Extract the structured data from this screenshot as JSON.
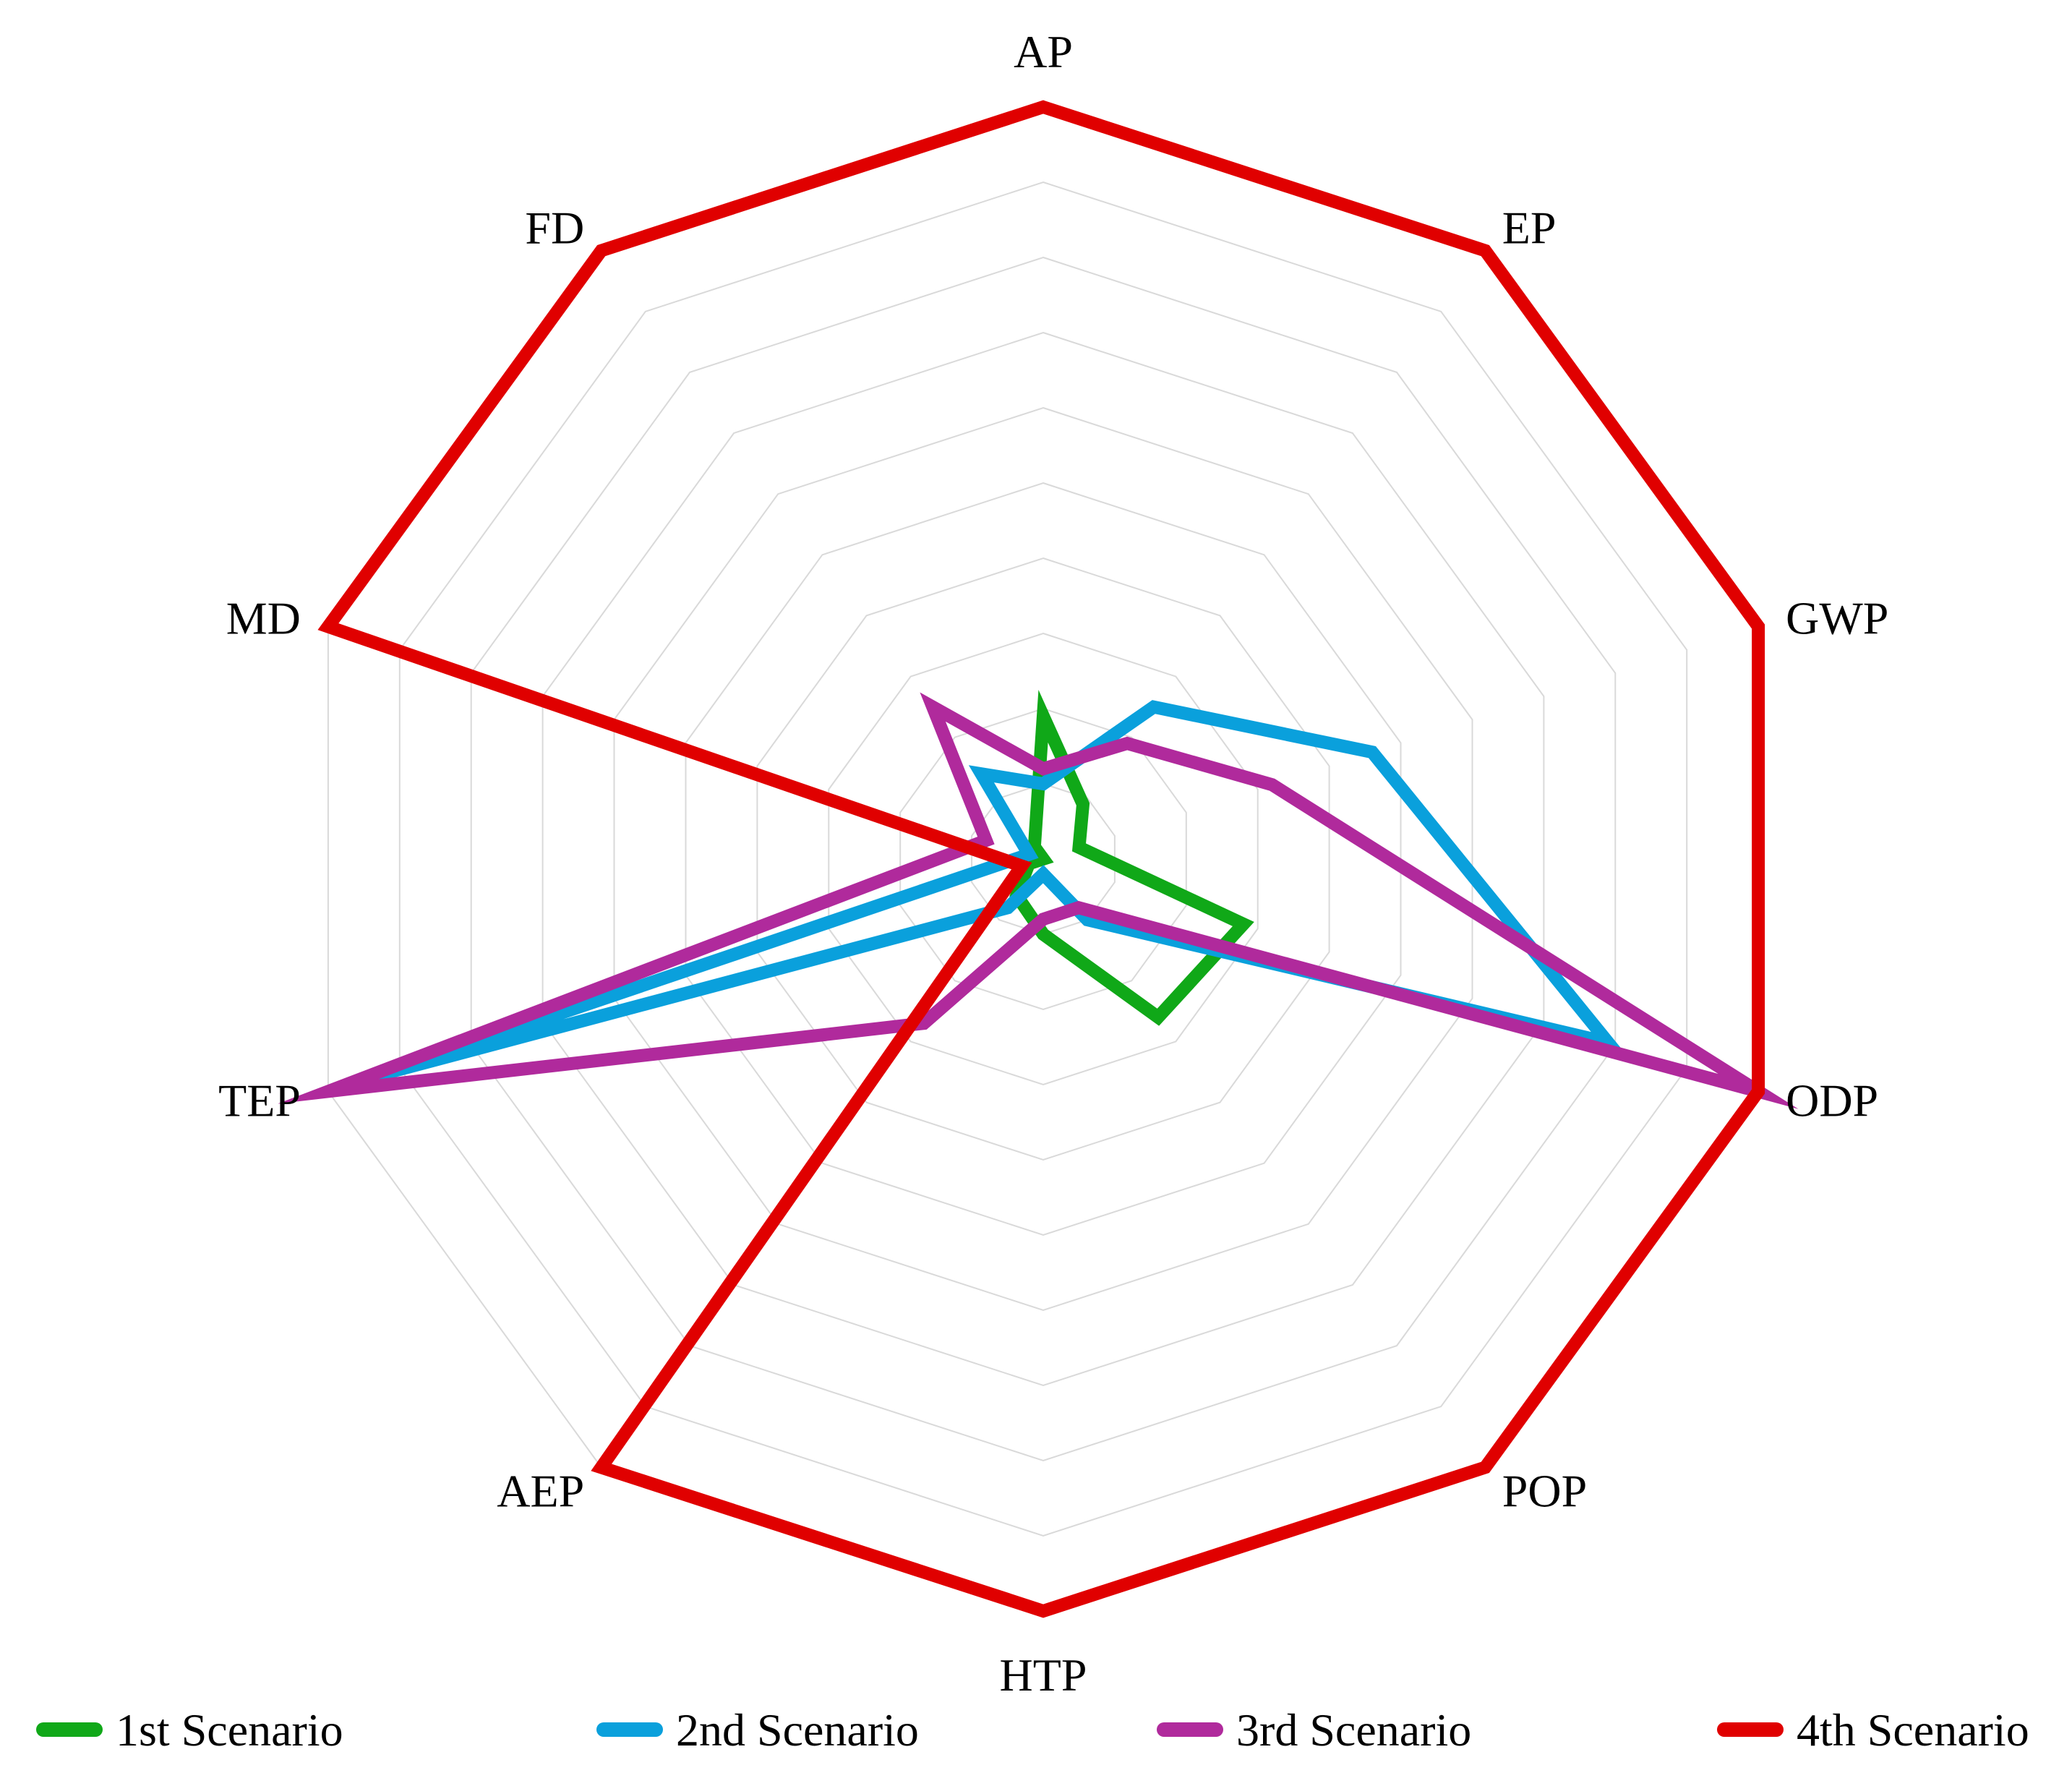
{
  "chart_data": {
    "type": "radar",
    "categories": [
      "AP",
      "EP",
      "GWP",
      "ODP",
      "POP",
      "HTP",
      "AEP",
      "TEP",
      "MD",
      "FD"
    ],
    "rlim": [
      0,
      1
    ],
    "grid": true,
    "grid_rings": 10,
    "legend_position": "bottom",
    "series": [
      {
        "name": "1st Scenario",
        "color": "#10a818",
        "values": [
          0.19,
          0.09,
          0.05,
          0.28,
          0.26,
          0.1,
          0.06,
          0.02,
          0.0,
          0.02
        ]
      },
      {
        "name": "2nd Scenario",
        "color": "#0aa0dc",
        "values": [
          0.1,
          0.25,
          0.46,
          0.79,
          0.1,
          0.02,
          0.08,
          0.93,
          0.02,
          0.14
        ]
      },
      {
        "name": "3rd Scenario",
        "color": "#b02a9c",
        "values": [
          0.12,
          0.19,
          0.32,
          1.0,
          0.08,
          0.08,
          0.27,
          1.0,
          0.08,
          0.25
        ]
      },
      {
        "name": "4th Scenario",
        "color": "#e00000",
        "values": [
          1.0,
          1.0,
          1.0,
          1.0,
          1.0,
          1.0,
          1.0,
          0.03,
          1.0,
          1.0
        ]
      }
    ]
  }
}
